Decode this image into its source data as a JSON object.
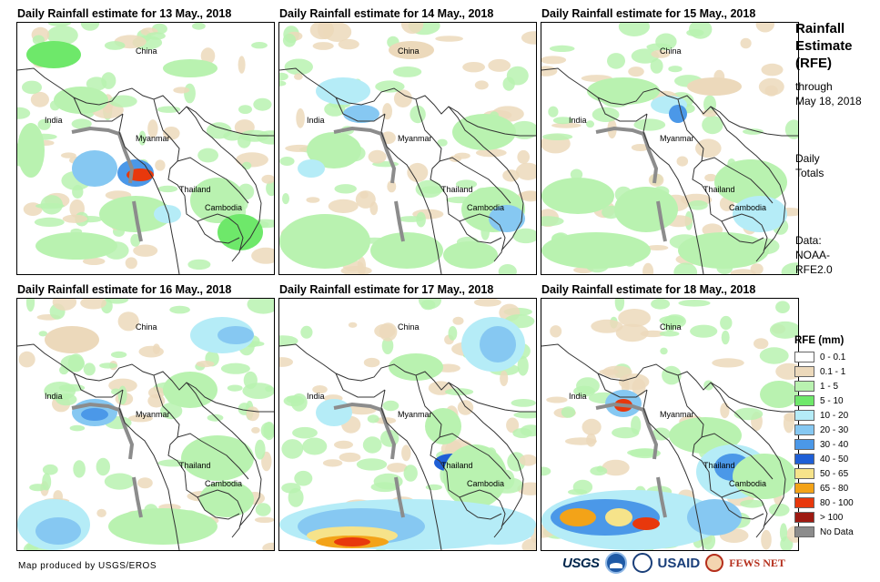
{
  "panels": [
    {
      "title": "Daily Rainfall estimate for 13 May., 2018",
      "labels": {
        "china": "China",
        "india": "India",
        "myanmar": "Myanmar",
        "thailand": "Thailand",
        "cambodia": "Cambodia"
      }
    },
    {
      "title": "Daily Rainfall estimate for 14 May., 2018",
      "labels": {
        "china": "China",
        "india": "India",
        "myanmar": "Myanmar",
        "thailand": "Thailand",
        "cambodia": "Cambodia"
      }
    },
    {
      "title": "Daily Rainfall estimate for 15 May., 2018",
      "labels": {
        "china": "China",
        "india": "India",
        "myanmar": "Myanmar",
        "thailand": "Thailand",
        "cambodia": "Cambodia"
      }
    },
    {
      "title": "Daily Rainfall estimate for 16 May., 2018",
      "labels": {
        "china": "China",
        "india": "India",
        "myanmar": "Myanmar",
        "thailand": "Thailand",
        "cambodia": "Cambodia"
      }
    },
    {
      "title": "Daily Rainfall estimate for 17 May., 2018",
      "labels": {
        "china": "China",
        "india": "India",
        "myanmar": "Myanmar",
        "thailand": "Thailand",
        "cambodia": "Cambodia"
      }
    },
    {
      "title": "Daily Rainfall estimate for 18 May., 2018",
      "labels": {
        "china": "China",
        "india": "India",
        "myanmar": "Myanmar",
        "thailand": "Thailand",
        "cambodia": "Cambodia"
      }
    }
  ],
  "side": {
    "title_line1": "Rainfall",
    "title_line2": "Estimate",
    "title_line3": "(RFE)",
    "through": "through",
    "date": "May 18, 2018",
    "daily1": "Daily",
    "daily2": "Totals",
    "data1": "Data:",
    "data2": "NOAA-",
    "data3": "RFE2.0"
  },
  "legend": {
    "title": "RFE (mm)",
    "items": [
      {
        "label": "0 - 0.1",
        "color": "#ffffff"
      },
      {
        "label": "0.1 - 1",
        "color": "#ecd9bb"
      },
      {
        "label": "1 - 5",
        "color": "#b9f2b0"
      },
      {
        "label": "5 - 10",
        "color": "#6ee86a"
      },
      {
        "label": "10 - 20",
        "color": "#b5ecf7"
      },
      {
        "label": "20 - 30",
        "color": "#86c8f2"
      },
      {
        "label": "30 - 40",
        "color": "#4b98e8"
      },
      {
        "label": "40 - 50",
        "color": "#1f5fd6"
      },
      {
        "label": "50 - 65",
        "color": "#f6e38a"
      },
      {
        "label": "65 - 80",
        "color": "#f3a318"
      },
      {
        "label": "80 - 100",
        "color": "#e8380c"
      },
      {
        "label": "> 100",
        "color": "#9e1a12"
      },
      {
        "label": "No Data",
        "color": "#8c8c8c"
      }
    ]
  },
  "credit": "Map produced by USGS/EROS",
  "logos": {
    "usgs": "USGS",
    "usaid": "USAID",
    "fews": "FEWS NET"
  }
}
